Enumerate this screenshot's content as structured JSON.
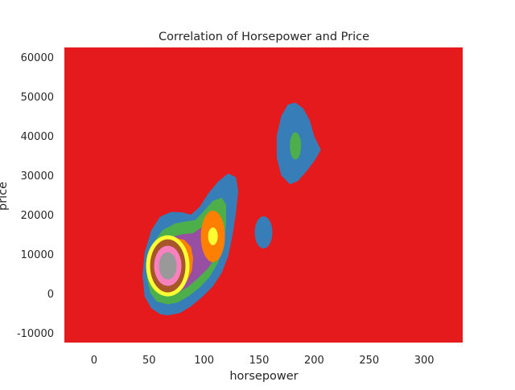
{
  "chart_data": {
    "type": "contour",
    "title": "Correlation of Horsepower and Price",
    "xlabel": "horsepower",
    "ylabel": "price",
    "xlim": [
      -27,
      335
    ],
    "ylim": [
      -12500,
      62500
    ],
    "xticks": [
      0,
      50,
      100,
      150,
      200,
      250,
      300
    ],
    "yticks": [
      -10000,
      0,
      10000,
      20000,
      30000,
      40000,
      50000,
      60000
    ],
    "grid": false,
    "legend": "none",
    "background_level_color": "#e41a1c",
    "level_colors": [
      "#377eb8",
      "#4daf4a",
      "#984ea3",
      "#ff7f00",
      "#ffff33",
      "#a65628",
      "#f781bf",
      "#999999"
    ],
    "density_peaks": [
      {
        "x": 67,
        "y": 7000,
        "max_level": 8
      },
      {
        "x": 108,
        "y": 14500,
        "max_level": 5
      },
      {
        "x": 183,
        "y": 37500,
        "max_level": 2
      },
      {
        "x": 154,
        "y": 15500,
        "max_level": 1
      }
    ]
  }
}
